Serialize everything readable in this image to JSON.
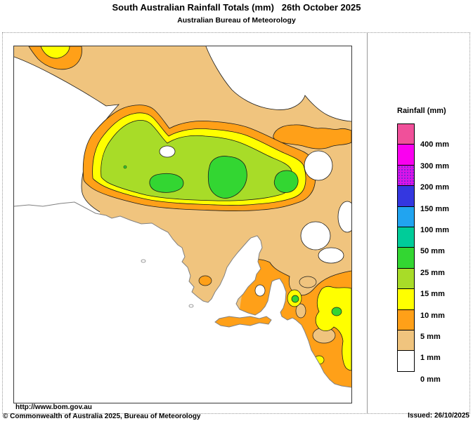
{
  "header": {
    "title": "South Australian Rainfall Totals (mm)   26th October 2025",
    "subtitle": "Australian Bureau of Meteorology"
  },
  "footer": {
    "url": "http://www.bom.gov.au",
    "copyright": "© Commonwealth of Australia 2025, Bureau of Meteorology",
    "issued": "Issued: 26/10/2025"
  },
  "legend": {
    "title": "Rainfall (mm)",
    "items": [
      {
        "label": "400 mm",
        "color": "#F0509A",
        "dotted": false
      },
      {
        "label": "300 mm",
        "color": "#FA00F0",
        "dotted": false
      },
      {
        "label": "200 mm",
        "color": "#DC14E8",
        "dotted": true
      },
      {
        "label": "150 mm",
        "color": "#3437E0",
        "dotted": false
      },
      {
        "label": "100 mm",
        "color": "#21A4F0",
        "dotted": false
      },
      {
        "label": "50 mm",
        "color": "#00CC99",
        "dotted": false
      },
      {
        "label": "25 mm",
        "color": "#33D632",
        "dotted": false
      },
      {
        "label": "15 mm",
        "color": "#A8DC28",
        "dotted": false
      },
      {
        "label": "10 mm",
        "color": "#FFFF00",
        "dotted": false
      },
      {
        "label": "5 mm",
        "color": "#FFA018",
        "dotted": false
      },
      {
        "label": "1 mm",
        "color": "#F0C47E",
        "dotted": false
      },
      {
        "label": "0 mm",
        "color": "#FFFFFF",
        "dotted": false
      }
    ]
  },
  "map": {
    "colors": {
      "none": "#FFFFFF",
      "rain_1mm": "#F0C47E",
      "rain_5mm": "#FFA018",
      "rain_10mm": "#FFFF00",
      "rain_15mm": "#A8DC28",
      "rain_25mm": "#33D632",
      "rain_50mm": "#00CC99",
      "contour": "#1A1A1A",
      "coastline": "#808080"
    }
  }
}
